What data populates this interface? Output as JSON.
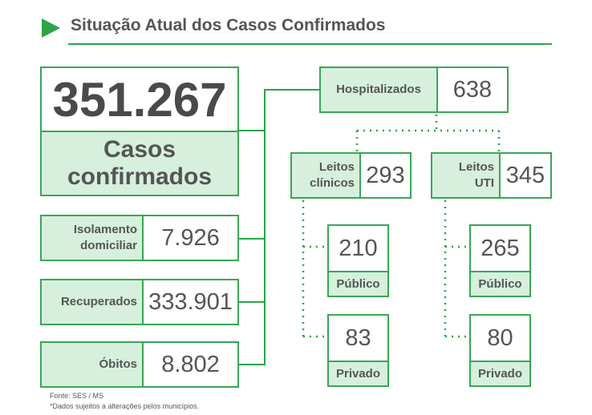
{
  "header": {
    "title": "Situação Atual dos Casos Confirmados"
  },
  "main": {
    "value": "351.267",
    "label": "Casos confirmados"
  },
  "stats": [
    {
      "label": "Isolamento domiciliar",
      "value": "7.926"
    },
    {
      "label": "Recuperados",
      "value": "333.901"
    },
    {
      "label": "Óbitos",
      "value": "8.802"
    }
  ],
  "hospital": {
    "label": "Hospitalizados",
    "value": "638"
  },
  "beds": [
    {
      "label": "Leitos clínicos",
      "value": "293",
      "breakdown": [
        {
          "value": "210",
          "label": "Público"
        },
        {
          "value": "83",
          "label": "Privado"
        }
      ]
    },
    {
      "label": "Leitos UTI",
      "value": "345",
      "breakdown": [
        {
          "value": "265",
          "label": "Público"
        },
        {
          "value": "80",
          "label": "Privado"
        }
      ]
    }
  ],
  "footer": {
    "source": "Fonte: SES / MS",
    "note": "*Dados sujeitos a alterações pelos municípios."
  }
}
